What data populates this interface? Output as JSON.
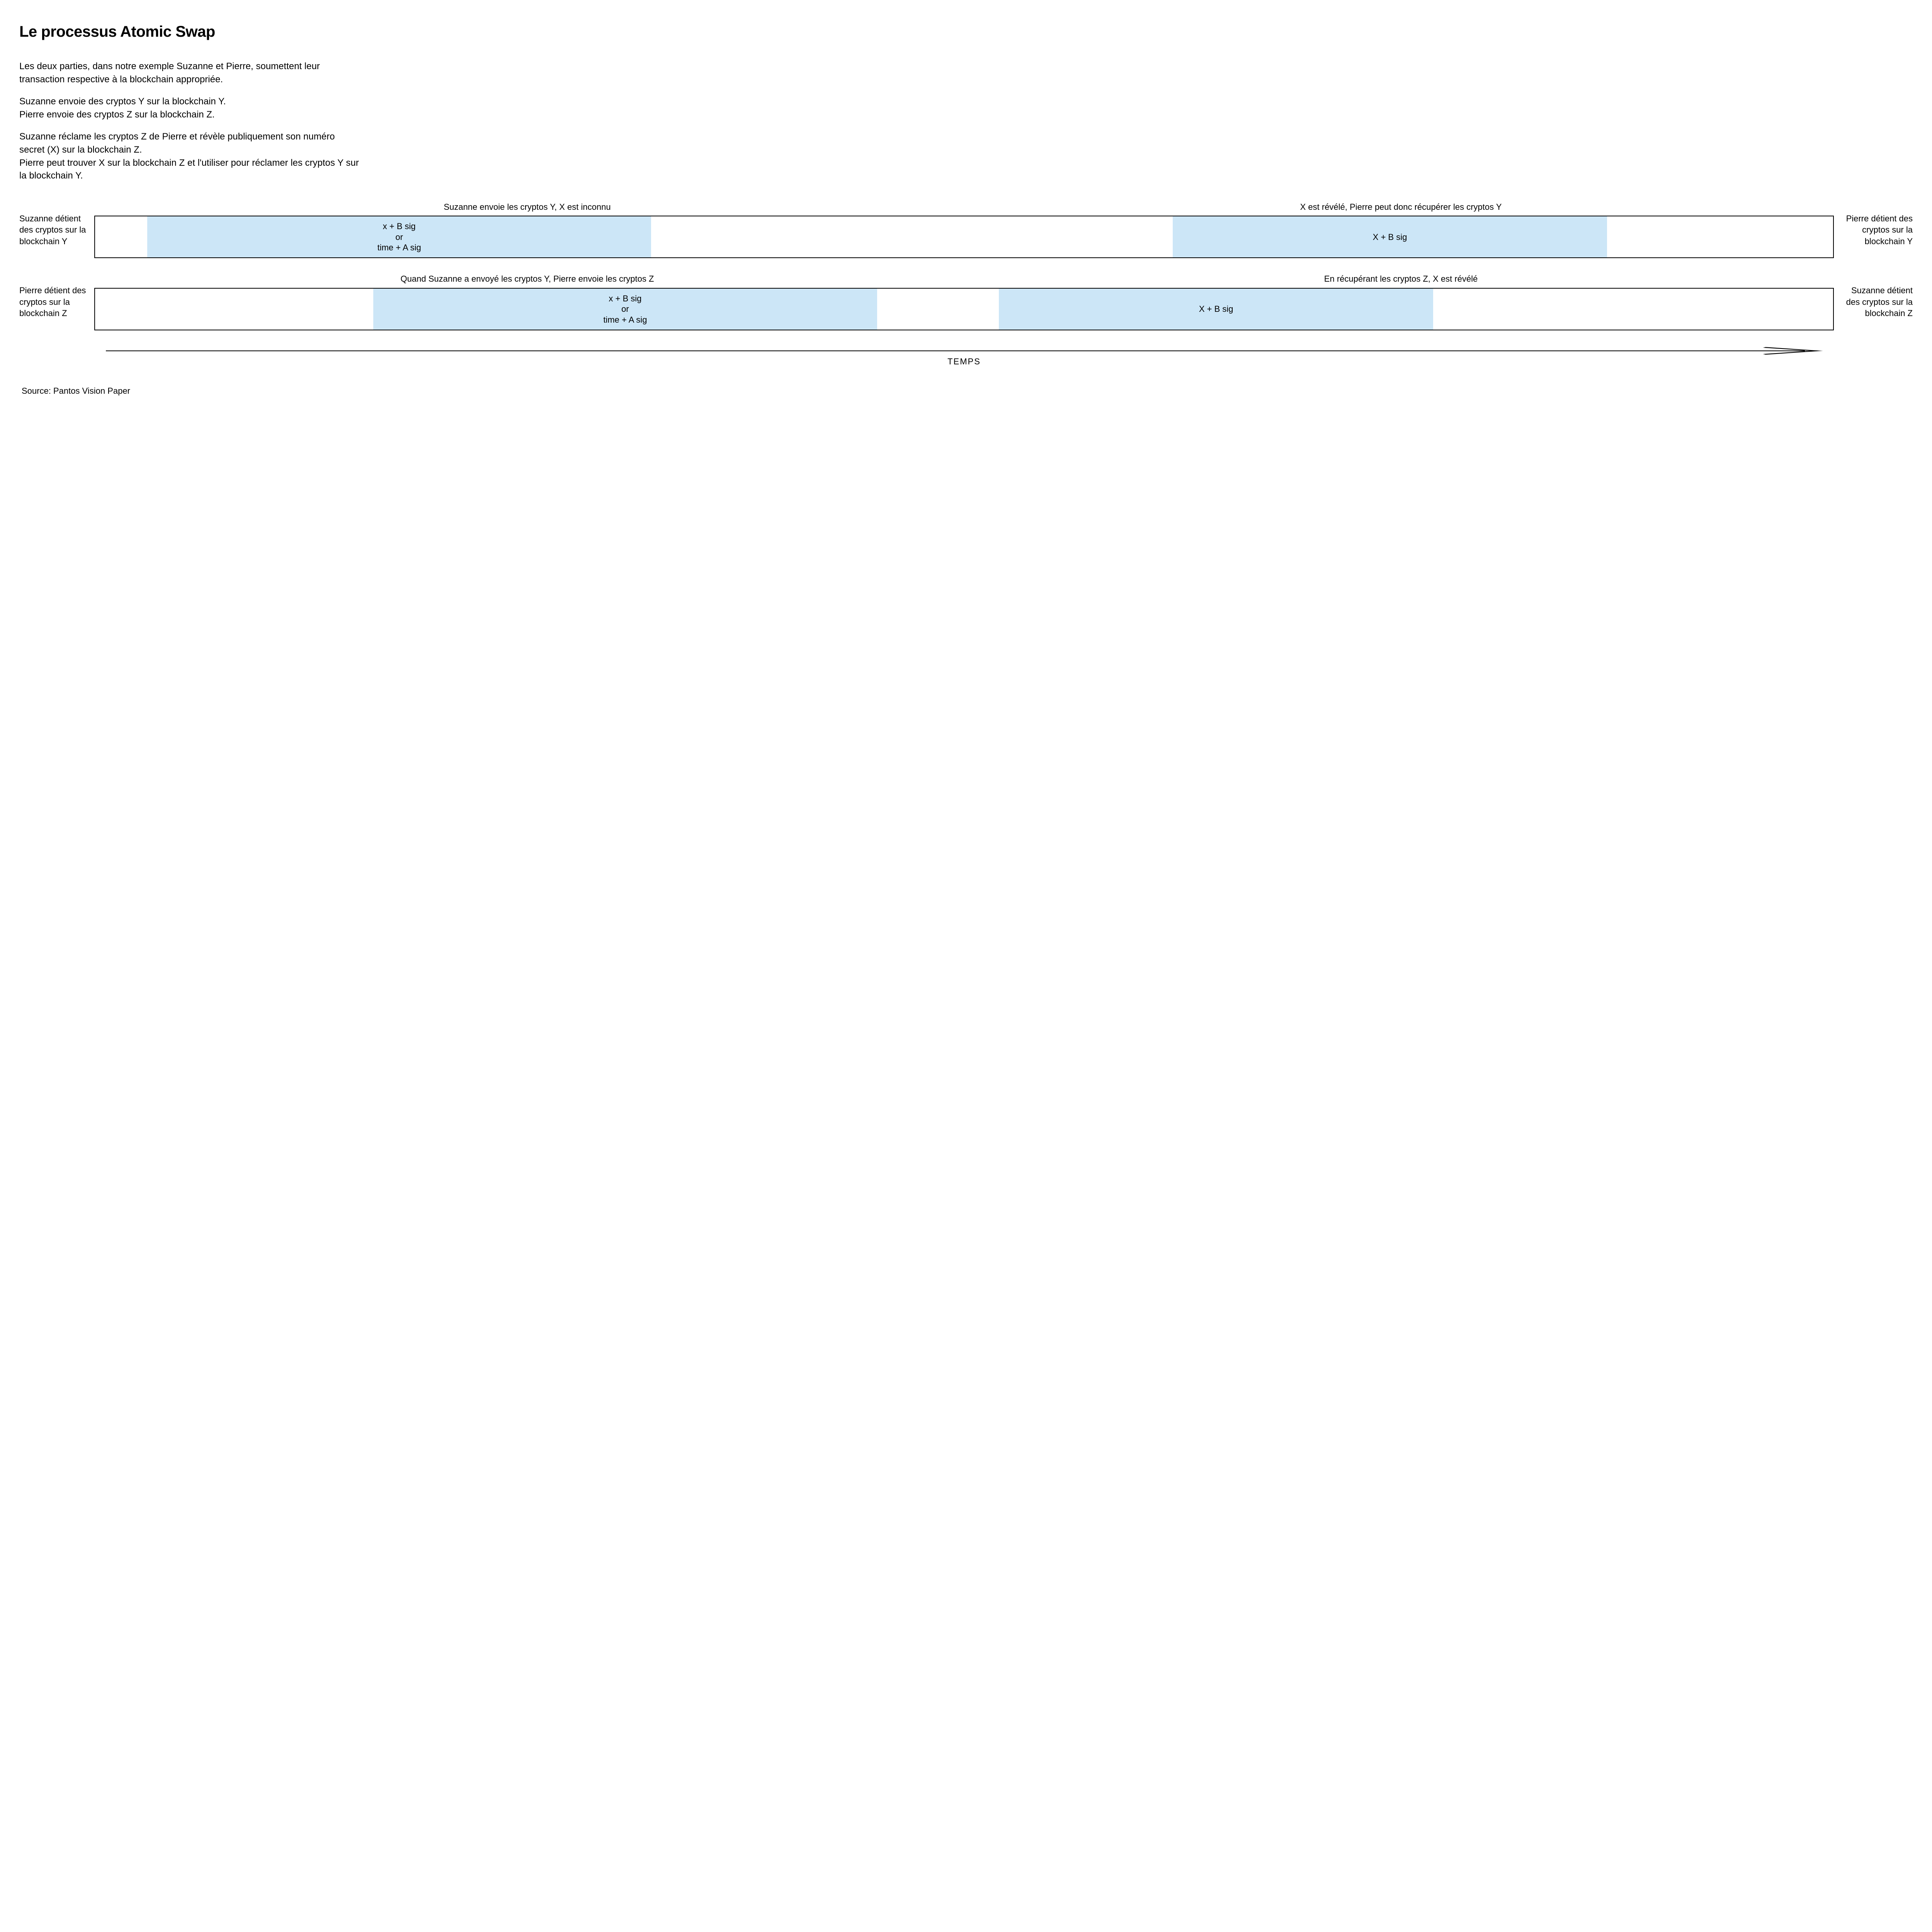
{
  "title": "Le processus Atomic Swap",
  "paragraphs": {
    "p1": "Les deux parties, dans notre exemple Suzanne et Pierre, soumettent leur transaction respective à la blockchain appropriée.",
    "p2a": "Suzanne envoie des cryptos Y sur la blockchain Y.",
    "p2b": "Pierre envoie des cryptos Z sur la blockchain Z.",
    "p3a": "Suzanne réclame les cryptos Z de Pierre et révèle publiquement son numéro secret (X) sur la blockchain Z.",
    "p3b": "Pierre peut trouver X sur la blockchain Z et l'utiliser pour réclamer les cryptos Y sur la blockchain Y."
  },
  "diagram": {
    "colors": {
      "block_fill": "#cce6f7",
      "bar_border": "#000000",
      "background": "#ffffff",
      "text": "#000000"
    },
    "lane1": {
      "left_label": "Suzanne détient des cryptos sur la blockchain Y",
      "right_label": "Pierre détient des cryptos sur la blockchain Y",
      "caption_left": "Suzanne envoie les cryptos Y, X est inconnu",
      "caption_right": "X est révélé, Pierre peut donc récupérer les cryptos Y",
      "block1": {
        "line1": "x + B sig",
        "line2": "or",
        "line3": "time + A sig",
        "left_pct": 3,
        "width_pct": 29
      },
      "block2": {
        "line1": "X + B sig",
        "left_pct": 62,
        "width_pct": 25
      }
    },
    "lane2": {
      "left_label": "Pierre détient des cryptos sur la blockchain Z",
      "right_label": "Suzanne détient des cryptos sur la blockchain Z",
      "caption_left": "Quand Suzanne a envoyé les cryptos Y, Pierre envoie les cryptos Z",
      "caption_right": "En récupérant les cryptos Z, X est révélé",
      "block1": {
        "line1": "x + B sig",
        "line2": "or",
        "line3": "time + A sig",
        "left_pct": 16,
        "width_pct": 29
      },
      "block2": {
        "line1": "X + B sig",
        "left_pct": 52,
        "width_pct": 25
      }
    },
    "axis_label": "TEMPS"
  },
  "source": "Source: Pantos Vision Paper"
}
